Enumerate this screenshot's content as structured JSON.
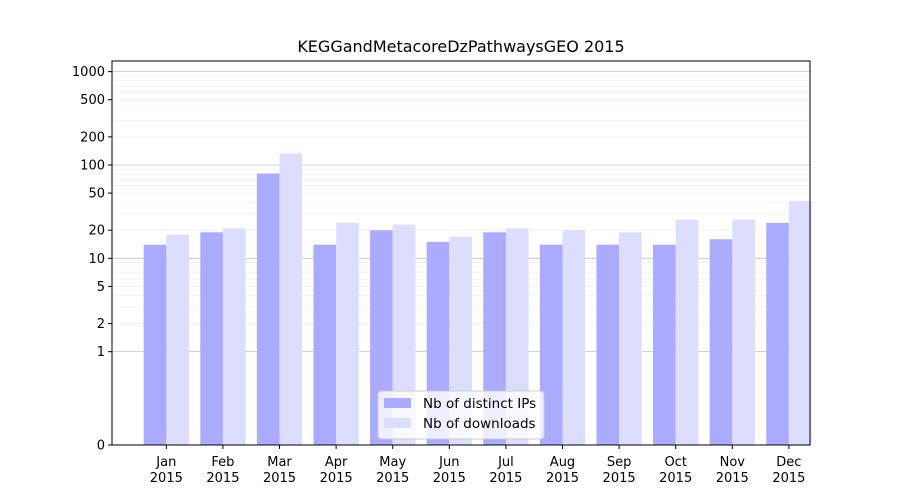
{
  "chart_data": {
    "type": "bar",
    "title": "KEGGandMetacoreDzPathwaysGEO 2015",
    "xlabel": "",
    "ylabel": "",
    "yscale": "symlog",
    "ylim": [
      0,
      1300
    ],
    "grid": true,
    "legend": "bottom-center",
    "categories": [
      [
        "Jan",
        "2015"
      ],
      [
        "Feb",
        "2015"
      ],
      [
        "Mar",
        "2015"
      ],
      [
        "Apr",
        "2015"
      ],
      [
        "May",
        "2015"
      ],
      [
        "Jun",
        "2015"
      ],
      [
        "Jul",
        "2015"
      ],
      [
        "Aug",
        "2015"
      ],
      [
        "Sep",
        "2015"
      ],
      [
        "Oct",
        "2015"
      ],
      [
        "Nov",
        "2015"
      ],
      [
        "Dec",
        "2015"
      ]
    ],
    "yticks": [
      {
        "value": 0,
        "label": "0"
      },
      {
        "value": 1,
        "label": "1"
      },
      {
        "value": 2,
        "label": "2"
      },
      {
        "value": 5,
        "label": "5"
      },
      {
        "value": 10,
        "label": "10"
      },
      {
        "value": 20,
        "label": "20"
      },
      {
        "value": 50,
        "label": "50"
      },
      {
        "value": 100,
        "label": "100"
      },
      {
        "value": 200,
        "label": "200"
      },
      {
        "value": 500,
        "label": "500"
      },
      {
        "value": 1000,
        "label": "1000"
      }
    ],
    "series": [
      {
        "name": "Nb of distinct IPs",
        "color": "#aaaaff",
        "values": [
          14,
          19,
          81,
          14,
          20,
          15,
          19,
          14,
          14,
          14,
          16,
          24
        ]
      },
      {
        "name": "Nb of downloads",
        "color": "#ddddff",
        "values": [
          18,
          21,
          133,
          24,
          23,
          17,
          21,
          20,
          19,
          26,
          26,
          41
        ]
      }
    ]
  }
}
